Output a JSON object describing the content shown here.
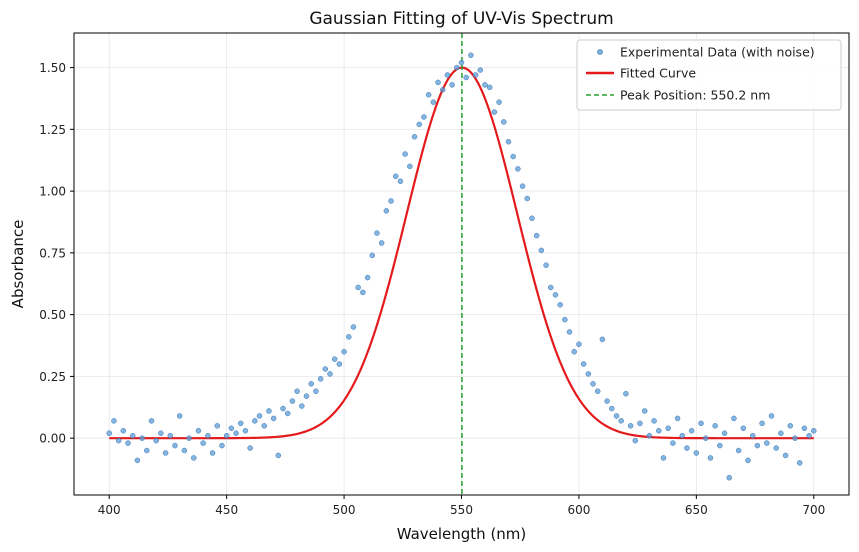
{
  "chart_data": {
    "type": "scatter",
    "title": "Gaussian Fitting of UV-Vis Spectrum",
    "xlabel": "Wavelength (nm)",
    "ylabel": "Absorbance",
    "xlim": [
      385,
      715
    ],
    "ylim": [
      -0.23,
      1.64
    ],
    "xticks": [
      400,
      450,
      500,
      550,
      600,
      650,
      700
    ],
    "yticks": [
      0.0,
      0.25,
      0.5,
      0.75,
      1.0,
      1.25,
      1.5
    ],
    "xtick_labels": [
      "400",
      "450",
      "500",
      "550",
      "600",
      "650",
      "700"
    ],
    "ytick_labels": [
      "0.00",
      "0.25",
      "0.50",
      "0.75",
      "1.00",
      "1.25",
      "1.50"
    ],
    "grid": true,
    "legend_position": "top-right",
    "colors": {
      "data": "#5b9bd5",
      "fit": "#e41a1c",
      "peak": "#2ca02c"
    },
    "series": [
      {
        "name": "Experimental Data (with noise)",
        "kind": "scatter",
        "x": [
          400,
          402,
          404,
          406,
          408,
          410,
          412,
          414,
          416,
          418,
          420,
          422,
          424,
          426,
          428,
          430,
          432,
          434,
          436,
          438,
          440,
          442,
          444,
          446,
          448,
          450,
          452,
          454,
          456,
          458,
          460,
          462,
          464,
          466,
          468,
          470,
          472,
          474,
          476,
          478,
          480,
          482,
          484,
          486,
          488,
          490,
          492,
          494,
          496,
          498,
          500,
          502,
          504,
          506,
          508,
          510,
          512,
          514,
          516,
          518,
          520,
          522,
          524,
          526,
          528,
          530,
          532,
          534,
          536,
          538,
          540,
          542,
          544,
          546,
          548,
          550,
          552,
          554,
          556,
          558,
          560,
          562,
          564,
          566,
          568,
          570,
          572,
          574,
          576,
          578,
          580,
          582,
          584,
          586,
          588,
          590,
          592,
          594,
          596,
          598,
          600,
          602,
          604,
          606,
          608,
          610,
          612,
          614,
          616,
          618,
          620,
          622,
          624,
          626,
          628,
          630,
          632,
          634,
          636,
          638,
          640,
          642,
          644,
          646,
          648,
          650,
          652,
          654,
          656,
          658,
          660,
          662,
          664,
          666,
          668,
          670,
          672,
          674,
          676,
          678,
          680,
          682,
          684,
          686,
          688,
          690,
          692,
          694,
          696,
          698,
          700
        ],
        "y": [
          0.02,
          0.07,
          -0.01,
          0.03,
          -0.02,
          0.01,
          -0.09,
          0.0,
          -0.05,
          0.07,
          -0.01,
          0.02,
          -0.06,
          0.01,
          -0.03,
          0.09,
          -0.05,
          0.0,
          -0.08,
          0.03,
          -0.02,
          0.01,
          -0.06,
          0.05,
          -0.03,
          0.01,
          0.04,
          0.02,
          0.06,
          0.03,
          -0.04,
          0.07,
          0.09,
          0.05,
          0.11,
          0.08,
          -0.07,
          0.12,
          0.1,
          0.15,
          0.19,
          0.13,
          0.17,
          0.22,
          0.19,
          0.24,
          0.28,
          0.26,
          0.32,
          0.3,
          0.35,
          0.41,
          0.45,
          0.61,
          0.59,
          0.65,
          0.74,
          0.83,
          0.79,
          0.92,
          0.96,
          1.06,
          1.04,
          1.15,
          1.1,
          1.22,
          1.27,
          1.3,
          1.39,
          1.36,
          1.44,
          1.41,
          1.47,
          1.43,
          1.5,
          1.52,
          1.46,
          1.55,
          1.47,
          1.49,
          1.43,
          1.42,
          1.32,
          1.36,
          1.28,
          1.2,
          1.14,
          1.09,
          1.02,
          0.97,
          0.89,
          0.82,
          0.76,
          0.7,
          0.61,
          0.58,
          0.54,
          0.48,
          0.43,
          0.35,
          0.38,
          0.3,
          0.26,
          0.22,
          0.19,
          0.4,
          0.15,
          0.12,
          0.09,
          0.07,
          0.18,
          0.05,
          -0.01,
          0.06,
          0.11,
          0.01,
          0.07,
          0.03,
          -0.08,
          0.04,
          -0.02,
          0.08,
          0.01,
          -0.04,
          0.03,
          -0.06,
          0.06,
          0.0,
          -0.08,
          0.05,
          -0.03,
          0.02,
          -0.16,
          0.08,
          -0.05,
          0.04,
          -0.09,
          0.01,
          -0.03,
          0.06,
          -0.02,
          0.09,
          -0.04,
          0.02,
          -0.07,
          0.05,
          0.0,
          -0.1,
          0.04,
          0.01,
          0.03
        ]
      },
      {
        "name": "Fitted Curve",
        "kind": "line",
        "amplitude": 1.5,
        "center": 550.2,
        "sigma": 23.5,
        "x_range": [
          400,
          700
        ]
      },
      {
        "name": "Peak Position: 550.2 nm",
        "kind": "vline",
        "x": 550.2
      }
    ]
  }
}
